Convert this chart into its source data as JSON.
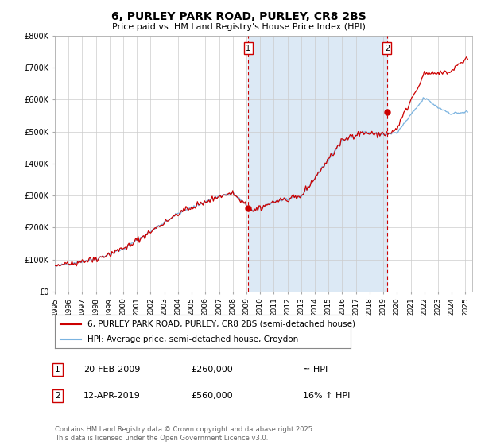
{
  "title": "6, PURLEY PARK ROAD, PURLEY, CR8 2BS",
  "subtitle": "Price paid vs. HM Land Registry's House Price Index (HPI)",
  "ylabel_ticks": [
    "£0",
    "£100K",
    "£200K",
    "£300K",
    "£400K",
    "£500K",
    "£600K",
    "£700K",
    "£800K"
  ],
  "ytick_values": [
    0,
    100000,
    200000,
    300000,
    400000,
    500000,
    600000,
    700000,
    800000
  ],
  "ylim": [
    0,
    800000
  ],
  "xlim_start": 1995.0,
  "xlim_end": 2025.5,
  "hpi_color": "#7ab3e0",
  "price_color": "#cc0000",
  "background_fill": "#dce9f5",
  "bg_fill_start": 2009.13,
  "bg_fill_end": 2019.28,
  "sale1_x": 2009.13,
  "sale1_y": 260000,
  "sale2_x": 2019.28,
  "sale2_y": 560000,
  "vline_color": "#cc0000",
  "legend_label_price": "6, PURLEY PARK ROAD, PURLEY, CR8 2BS (semi-detached house)",
  "legend_label_hpi": "HPI: Average price, semi-detached house, Croydon",
  "annotation1_date": "20-FEB-2009",
  "annotation1_price": "£260,000",
  "annotation1_hpi": "≈ HPI",
  "annotation2_date": "12-APR-2019",
  "annotation2_price": "£560,000",
  "annotation2_hpi": "16% ↑ HPI",
  "footer": "Contains HM Land Registry data © Crown copyright and database right 2025.\nThis data is licensed under the Open Government Licence v3.0.",
  "title_fontsize": 10,
  "subtitle_fontsize": 8,
  "tick_fontsize": 7,
  "legend_fontsize": 7.5,
  "annot_fontsize": 8,
  "footer_fontsize": 6
}
